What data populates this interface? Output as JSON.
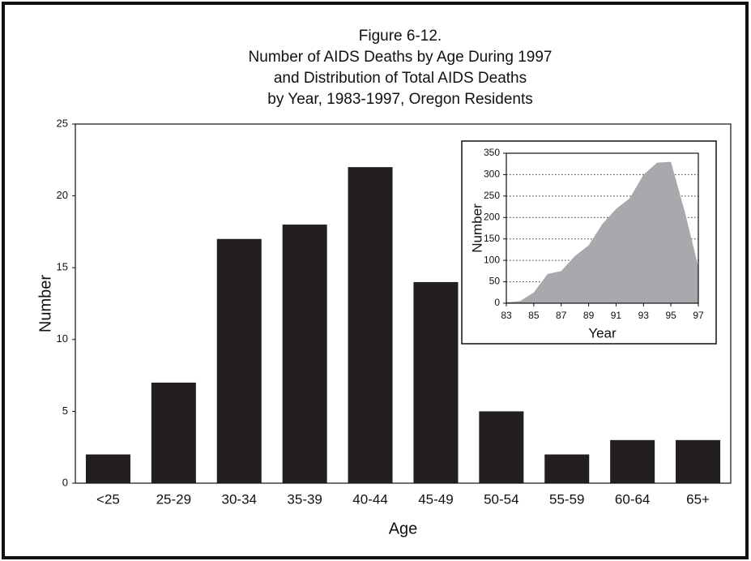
{
  "chart_data": [
    {
      "type": "bar",
      "title": [
        "Figure 6-12.",
        "Number of AIDS Deaths by Age During 1997",
        "and Distribution of Total AIDS Deaths",
        "by Year, 1983-1997, Oregon Residents"
      ],
      "x_label": "Age",
      "y_label": "Number",
      "categories": [
        "<25",
        "25-29",
        "30-34",
        "35-39",
        "40-44",
        "45-49",
        "50-54",
        "55-59",
        "60-64",
        "65+"
      ],
      "values": [
        2,
        7,
        17,
        18,
        22,
        14,
        5,
        2,
        3,
        3
      ],
      "color": "#231f20",
      "ylim": [
        0,
        25
      ],
      "yticks": [
        0,
        5,
        10,
        15,
        20,
        25
      ],
      "grid": false
    },
    {
      "type": "area",
      "x_label": "Year",
      "y_label": "Number",
      "x": [
        83,
        84,
        85,
        86,
        87,
        88,
        89,
        90,
        91,
        92,
        93,
        94,
        95,
        96,
        97
      ],
      "values": [
        2,
        5,
        25,
        68,
        75,
        110,
        135,
        185,
        220,
        245,
        300,
        328,
        330,
        215,
        85
      ],
      "color": "#a7a9ac",
      "xlim": [
        83,
        97
      ],
      "xticks": [
        83,
        85,
        87,
        89,
        91,
        93,
        95,
        97
      ],
      "ylim": [
        0,
        350
      ],
      "yticks": [
        0,
        50,
        100,
        150,
        200,
        250,
        300,
        350
      ],
      "grid": true
    }
  ]
}
